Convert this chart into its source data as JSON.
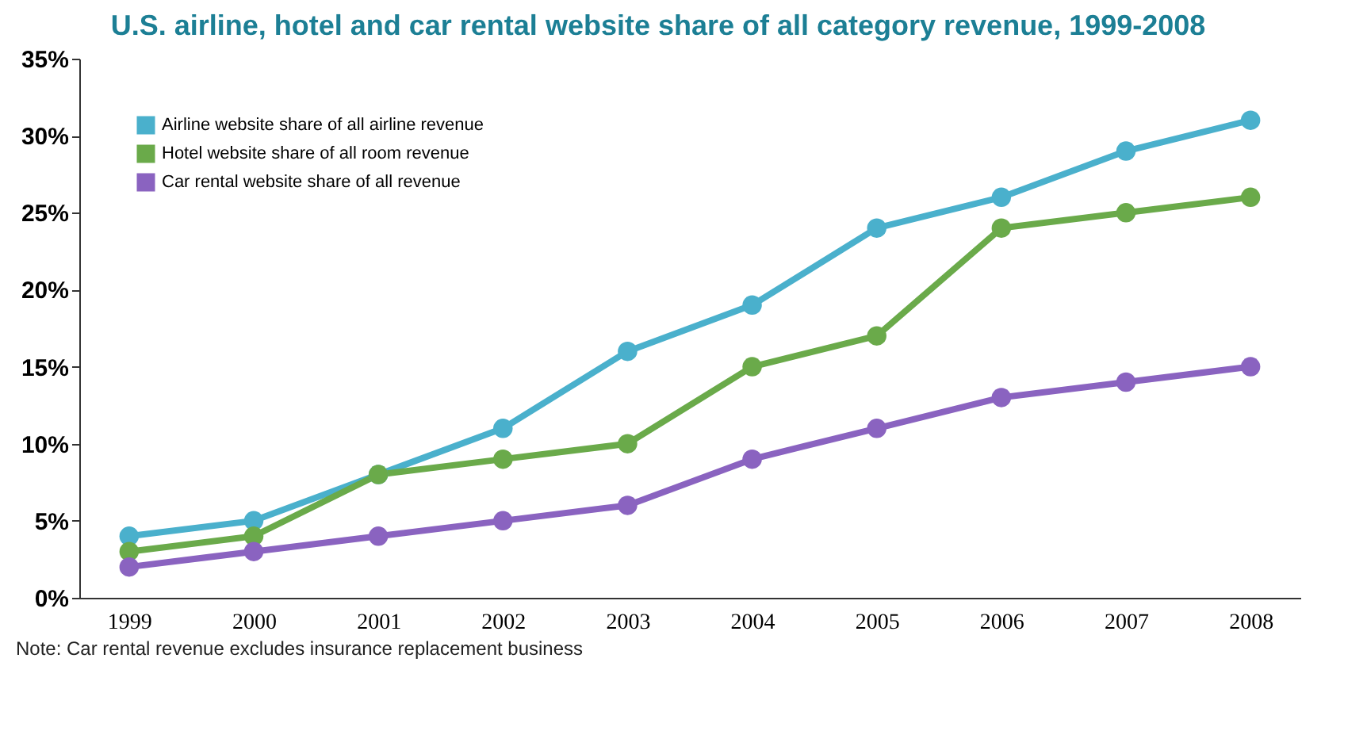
{
  "chart_data": {
    "type": "line",
    "title": "U.S. airline, hotel and car rental website share of all category revenue, 1999-2008",
    "categories": [
      "1999",
      "2000",
      "2001",
      "2002",
      "2003",
      "2004",
      "2005",
      "2006",
      "2007",
      "2008"
    ],
    "series": [
      {
        "name": "Airline website share of all airline revenue",
        "color": "#4ab0cc",
        "values": [
          4,
          5,
          8,
          11,
          16,
          19,
          24,
          26,
          29,
          31
        ]
      },
      {
        "name": "Hotel website share of all room revenue",
        "color": "#6aaa4a",
        "values": [
          3,
          4,
          8,
          9,
          10,
          15,
          17,
          24,
          25,
          26
        ]
      },
      {
        "name": "Car rental website share of all revenue",
        "color": "#8a63c0",
        "values": [
          2,
          3,
          4,
          5,
          6,
          9,
          11,
          13,
          14,
          15
        ]
      }
    ],
    "ylim": [
      0,
      35
    ],
    "yticks": [
      {
        "value": 0,
        "label": "0%"
      },
      {
        "value": 5,
        "label": "5%"
      },
      {
        "value": 10,
        "label": "10%"
      },
      {
        "value": 15,
        "label": "15%"
      },
      {
        "value": 20,
        "label": "20%"
      },
      {
        "value": 25,
        "label": "25%"
      },
      {
        "value": 30,
        "label": "30%"
      },
      {
        "value": 35,
        "label": "35%"
      }
    ],
    "annotations": [
      "Note: Car rental revenue excludes insurance replacement business"
    ],
    "legend": "top left",
    "marker": "circle",
    "line_style": "solid",
    "grid": false
  }
}
